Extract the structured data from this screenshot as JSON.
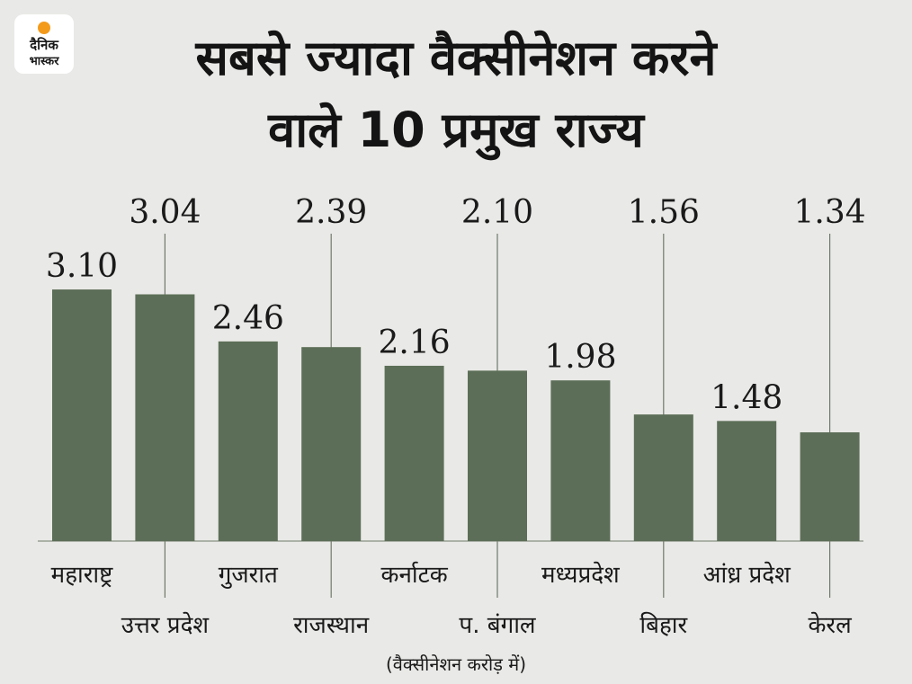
{
  "brand": {
    "line1": "दैनिक",
    "line2": "भास्कर",
    "dot_color": "#f39a1b"
  },
  "title_lines": [
    "सबसे ज्यादा वैक्सीनेशन करने",
    "वाले 10 प्रमुख राज्य"
  ],
  "unit_note": "(वैक्सीनेशन करोड़ में)",
  "colors": {
    "bar": "#5c6e57",
    "background": "#e9e9e7",
    "leader": "#6f7a6a"
  },
  "chart_data": {
    "type": "bar",
    "categories": [
      "महाराष्ट्र",
      "उत्तर प्रदेश",
      "गुजरात",
      "राजस्थान",
      "कर्नाटक",
      "प. बंगाल",
      "मध्यप्रदेश",
      "बिहार",
      "आंध्र प्रदेश",
      "केरल"
    ],
    "values": [
      3.1,
      3.04,
      2.46,
      2.39,
      2.16,
      2.1,
      1.98,
      1.56,
      1.48,
      1.34
    ],
    "value_labels": [
      "3.10",
      "3.04",
      "2.46",
      "2.39",
      "2.16",
      "2.10",
      "1.98",
      "1.56",
      "1.48",
      "1.34"
    ],
    "label_layout": "alternating: odd-position bars have value above bar and category below; even-position bars have value and category at ends of a vertical leader line",
    "ylim": [
      0,
      3.1
    ],
    "title": "सबसे ज्यादा वैक्सीनेशन करने वाले 10 प्रमुख राज्य",
    "xlabel": "",
    "ylabel": "",
    "grid": false,
    "legend": "none"
  }
}
